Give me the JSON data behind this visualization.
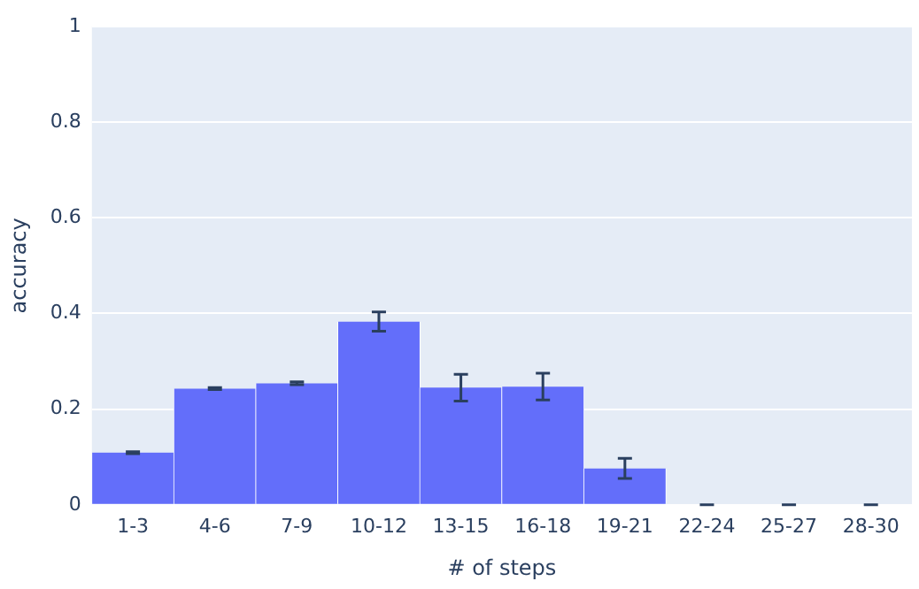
{
  "chart_data": {
    "type": "bar",
    "xlabel": "# of steps",
    "ylabel": "accuracy",
    "categories": [
      "1-3",
      "4-6",
      "7-9",
      "10-12",
      "13-15",
      "16-18",
      "19-21",
      "22-24",
      "25-27",
      "28-30"
    ],
    "values": [
      0.109,
      0.243,
      0.254,
      0.383,
      0.245,
      0.247,
      0.076,
      0,
      0,
      0
    ],
    "errors": [
      0.002,
      0.002,
      0.003,
      0.02,
      0.028,
      0.028,
      0.021,
      0,
      0,
      0
    ],
    "color": "#636efa",
    "ylim": [
      0,
      1
    ],
    "yticks": [
      0,
      0.2,
      0.4,
      0.6,
      0.8,
      1
    ],
    "grid": "y",
    "legend": false
  }
}
